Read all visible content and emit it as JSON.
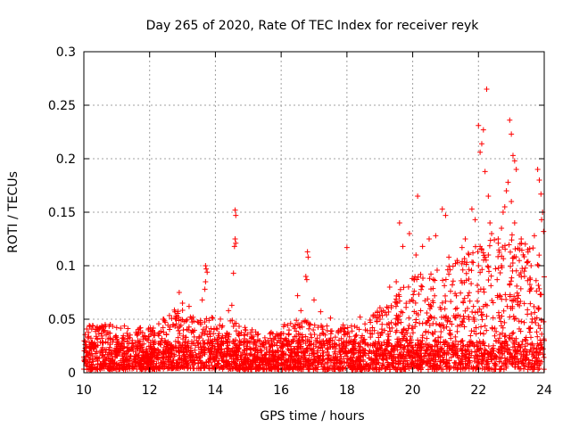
{
  "chart_data": {
    "type": "scatter",
    "title": "Day 265 of 2020, Rate Of TEC Index for receiver reyk",
    "xlabel": "GPS time / hours",
    "ylabel": "ROTI / TECUs",
    "xlim": [
      10,
      24
    ],
    "ylim": [
      0,
      0.3
    ],
    "xticks": [
      "10",
      "12",
      "14",
      "16",
      "18",
      "20",
      "22",
      "24"
    ],
    "yticks": [
      "0",
      "0.05",
      "0.1",
      "0.15",
      "0.2",
      "0.25",
      "0.3"
    ],
    "grid": true,
    "marker": "+",
    "color": "#ff0000",
    "envelope": [
      {
        "x": 10.0,
        "low": 0.003,
        "high": 0.045
      },
      {
        "x": 11.0,
        "low": 0.003,
        "high": 0.045
      },
      {
        "x": 12.0,
        "low": 0.003,
        "high": 0.042
      },
      {
        "x": 12.8,
        "low": 0.004,
        "high": 0.06
      },
      {
        "x": 13.5,
        "low": 0.004,
        "high": 0.055
      },
      {
        "x": 14.5,
        "low": 0.003,
        "high": 0.05
      },
      {
        "x": 15.5,
        "low": 0.003,
        "high": 0.035
      },
      {
        "x": 16.5,
        "low": 0.003,
        "high": 0.05
      },
      {
        "x": 17.5,
        "low": 0.003,
        "high": 0.045
      },
      {
        "x": 18.5,
        "low": 0.003,
        "high": 0.045
      },
      {
        "x": 19.3,
        "low": 0.003,
        "high": 0.07
      },
      {
        "x": 20.0,
        "low": 0.003,
        "high": 0.09
      },
      {
        "x": 21.0,
        "low": 0.003,
        "high": 0.1
      },
      {
        "x": 22.0,
        "low": 0.003,
        "high": 0.12
      },
      {
        "x": 23.0,
        "low": 0.003,
        "high": 0.13
      },
      {
        "x": 24.0,
        "low": 0.003,
        "high": 0.11
      }
    ],
    "highlights": [
      {
        "x": 12.9,
        "y": 0.075
      },
      {
        "x": 13.0,
        "y": 0.065
      },
      {
        "x": 13.2,
        "y": 0.062
      },
      {
        "x": 13.7,
        "y": 0.1
      },
      {
        "x": 13.72,
        "y": 0.097
      },
      {
        "x": 13.75,
        "y": 0.094
      },
      {
        "x": 13.7,
        "y": 0.085
      },
      {
        "x": 13.68,
        "y": 0.078
      },
      {
        "x": 13.6,
        "y": 0.068
      },
      {
        "x": 14.6,
        "y": 0.152
      },
      {
        "x": 14.62,
        "y": 0.147
      },
      {
        "x": 14.6,
        "y": 0.125
      },
      {
        "x": 14.62,
        "y": 0.121
      },
      {
        "x": 14.58,
        "y": 0.118
      },
      {
        "x": 14.55,
        "y": 0.093
      },
      {
        "x": 14.5,
        "y": 0.063
      },
      {
        "x": 14.4,
        "y": 0.058
      },
      {
        "x": 16.1,
        "y": 0.045
      },
      {
        "x": 16.5,
        "y": 0.072
      },
      {
        "x": 16.6,
        "y": 0.058
      },
      {
        "x": 16.8,
        "y": 0.113
      },
      {
        "x": 16.82,
        "y": 0.108
      },
      {
        "x": 16.75,
        "y": 0.09
      },
      {
        "x": 16.78,
        "y": 0.087
      },
      {
        "x": 17.0,
        "y": 0.068
      },
      {
        "x": 17.2,
        "y": 0.057
      },
      {
        "x": 17.5,
        "y": 0.051
      },
      {
        "x": 18.0,
        "y": 0.117
      },
      {
        "x": 18.4,
        "y": 0.052
      },
      {
        "x": 18.8,
        "y": 0.054
      },
      {
        "x": 19.3,
        "y": 0.08
      },
      {
        "x": 19.5,
        "y": 0.085
      },
      {
        "x": 19.6,
        "y": 0.14
      },
      {
        "x": 19.7,
        "y": 0.118
      },
      {
        "x": 19.9,
        "y": 0.13
      },
      {
        "x": 20.1,
        "y": 0.11
      },
      {
        "x": 20.15,
        "y": 0.165
      },
      {
        "x": 20.3,
        "y": 0.118
      },
      {
        "x": 20.5,
        "y": 0.125
      },
      {
        "x": 20.7,
        "y": 0.128
      },
      {
        "x": 20.9,
        "y": 0.153
      },
      {
        "x": 21.0,
        "y": 0.147
      },
      {
        "x": 21.1,
        "y": 0.108
      },
      {
        "x": 21.3,
        "y": 0.102
      },
      {
        "x": 21.5,
        "y": 0.117
      },
      {
        "x": 21.6,
        "y": 0.125
      },
      {
        "x": 21.8,
        "y": 0.153
      },
      {
        "x": 21.9,
        "y": 0.143
      },
      {
        "x": 22.0,
        "y": 0.231
      },
      {
        "x": 22.05,
        "y": 0.206
      },
      {
        "x": 22.1,
        "y": 0.214
      },
      {
        "x": 22.15,
        "y": 0.227
      },
      {
        "x": 22.2,
        "y": 0.188
      },
      {
        "x": 22.25,
        "y": 0.265
      },
      {
        "x": 22.3,
        "y": 0.165
      },
      {
        "x": 22.35,
        "y": 0.14
      },
      {
        "x": 22.4,
        "y": 0.13
      },
      {
        "x": 22.05,
        "y": 0.118
      },
      {
        "x": 22.1,
        "y": 0.115
      },
      {
        "x": 22.15,
        "y": 0.112
      },
      {
        "x": 22.2,
        "y": 0.108
      },
      {
        "x": 22.0,
        "y": 0.1
      },
      {
        "x": 22.3,
        "y": 0.11
      },
      {
        "x": 22.6,
        "y": 0.125
      },
      {
        "x": 22.7,
        "y": 0.135
      },
      {
        "x": 22.75,
        "y": 0.15
      },
      {
        "x": 22.8,
        "y": 0.155
      },
      {
        "x": 22.85,
        "y": 0.17
      },
      {
        "x": 22.9,
        "y": 0.178
      },
      {
        "x": 22.95,
        "y": 0.236
      },
      {
        "x": 23.0,
        "y": 0.223
      },
      {
        "x": 23.05,
        "y": 0.203
      },
      {
        "x": 23.1,
        "y": 0.198
      },
      {
        "x": 23.15,
        "y": 0.19
      },
      {
        "x": 23.0,
        "y": 0.16
      },
      {
        "x": 23.1,
        "y": 0.14
      },
      {
        "x": 23.3,
        "y": 0.125
      },
      {
        "x": 23.5,
        "y": 0.115
      },
      {
        "x": 23.7,
        "y": 0.128
      },
      {
        "x": 23.8,
        "y": 0.19
      },
      {
        "x": 23.85,
        "y": 0.18
      },
      {
        "x": 23.9,
        "y": 0.167
      },
      {
        "x": 23.95,
        "y": 0.15
      },
      {
        "x": 23.92,
        "y": 0.143
      },
      {
        "x": 23.98,
        "y": 0.132
      },
      {
        "x": 23.6,
        "y": 0.1
      },
      {
        "x": 23.4,
        "y": 0.09
      }
    ]
  }
}
